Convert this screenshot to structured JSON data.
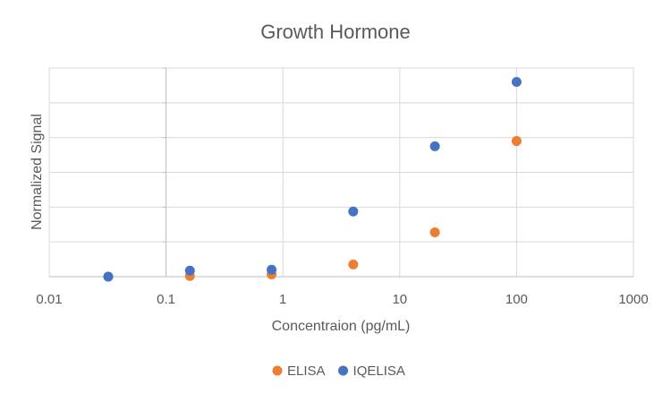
{
  "chart_data": {
    "type": "scatter",
    "title": "Growth Hormone",
    "xlabel": "Concentraion (pg/mL)",
    "ylabel": "Normalized Signal",
    "x_scale": "log",
    "xlim": [
      0.01,
      1000
    ],
    "ylim": [
      0,
      1.2
    ],
    "x_ticks": [
      "0.01",
      "0.1",
      "1",
      "10",
      "100",
      "1000"
    ],
    "y_axis_crosses_x": 0.1,
    "grid": true,
    "legend_position": "bottom",
    "series": [
      {
        "name": "ELISA",
        "color": "#ED7D31",
        "points": [
          {
            "x": 0.032,
            "y": 0.0
          },
          {
            "x": 0.16,
            "y": 0.004
          },
          {
            "x": 0.8,
            "y": 0.013
          },
          {
            "x": 4.0,
            "y": 0.07
          },
          {
            "x": 20,
            "y": 0.255
          },
          {
            "x": 100,
            "y": 0.78
          }
        ]
      },
      {
        "name": "IQELISA",
        "color": "#4472C4",
        "points": [
          {
            "x": 0.032,
            "y": 0.0
          },
          {
            "x": 0.16,
            "y": 0.035
          },
          {
            "x": 0.8,
            "y": 0.04
          },
          {
            "x": 4.0,
            "y": 0.375
          },
          {
            "x": 20,
            "y": 0.75
          },
          {
            "x": 100,
            "y": 1.12
          }
        ]
      }
    ]
  }
}
